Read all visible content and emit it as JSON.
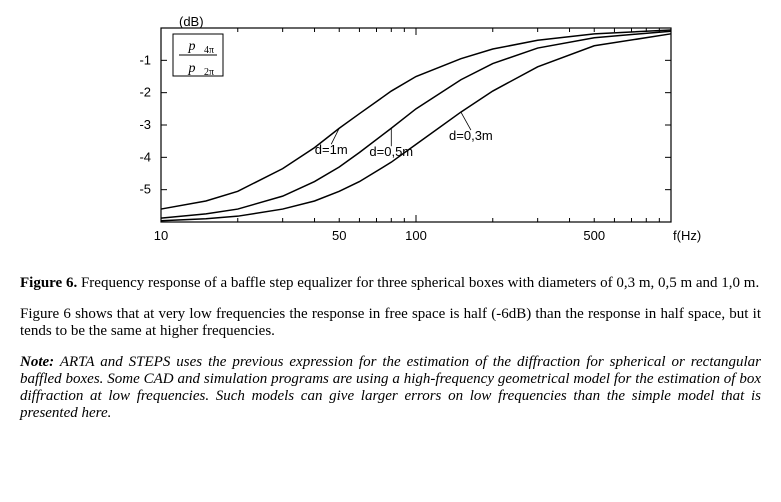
{
  "chart": {
    "type": "line",
    "background_color": "#ffffff",
    "axis_color": "#000000",
    "line_color": "#000000",
    "line_width": 1.5,
    "xlabel": "f(Hz)",
    "ylabel": "(dB)",
    "x_axis": {
      "scale": "log",
      "min": 10,
      "max": 1000,
      "ticks": [
        10,
        50,
        100,
        500
      ]
    },
    "y_axis": {
      "scale": "linear",
      "min": -6,
      "max": 0,
      "ticks": [
        -5,
        -4,
        -3,
        -2,
        -1
      ]
    },
    "ratio_label": {
      "numerator": "p",
      "num_sub": "4π",
      "denominator": "p",
      "den_sub": "2π"
    },
    "series": [
      {
        "label": "d=1m",
        "points": [
          [
            10,
            -5.6
          ],
          [
            15,
            -5.35
          ],
          [
            20,
            -5.05
          ],
          [
            30,
            -4.35
          ],
          [
            40,
            -3.7
          ],
          [
            50,
            -3.1
          ],
          [
            60,
            -2.65
          ],
          [
            80,
            -1.95
          ],
          [
            100,
            -1.5
          ],
          [
            150,
            -0.95
          ],
          [
            200,
            -0.65
          ],
          [
            300,
            -0.38
          ],
          [
            500,
            -0.18
          ],
          [
            1000,
            -0.06
          ]
        ]
      },
      {
        "label": "d=0,5m",
        "points": [
          [
            10,
            -5.88
          ],
          [
            15,
            -5.75
          ],
          [
            20,
            -5.6
          ],
          [
            30,
            -5.2
          ],
          [
            40,
            -4.75
          ],
          [
            50,
            -4.3
          ],
          [
            60,
            -3.85
          ],
          [
            80,
            -3.1
          ],
          [
            100,
            -2.5
          ],
          [
            150,
            -1.6
          ],
          [
            200,
            -1.1
          ],
          [
            300,
            -0.62
          ],
          [
            500,
            -0.3
          ],
          [
            1000,
            -0.1
          ]
        ]
      },
      {
        "label": "d=0,3m",
        "points": [
          [
            10,
            -5.96
          ],
          [
            15,
            -5.9
          ],
          [
            20,
            -5.82
          ],
          [
            30,
            -5.6
          ],
          [
            40,
            -5.35
          ],
          [
            50,
            -5.05
          ],
          [
            60,
            -4.75
          ],
          [
            80,
            -4.15
          ],
          [
            100,
            -3.6
          ],
          [
            150,
            -2.6
          ],
          [
            200,
            -1.95
          ],
          [
            300,
            -1.2
          ],
          [
            500,
            -0.55
          ],
          [
            1000,
            -0.18
          ]
        ]
      }
    ]
  },
  "caption": {
    "label": "Figure 6.",
    "text": "Frequency response of a baffle step equalizer for three spherical boxes with diameters of 0,3 m, 0,5 m and 1,0 m."
  },
  "paragraph": "Figure 6 shows that at very low frequencies the response in free space is half (-6dB) than the response in half space, but it tends to be the same at higher frequencies.",
  "note": {
    "label": "Note:",
    "text": "ARTA and STEPS uses the previous expression for the estimation of the diffraction for spherical or rectangular baffled boxes. Some CAD and simulation programs are using a high-frequency geometrical model for the estimation of box diffraction at low frequencies. Such models can give larger errors on low frequencies than the simple model that is presented here."
  }
}
